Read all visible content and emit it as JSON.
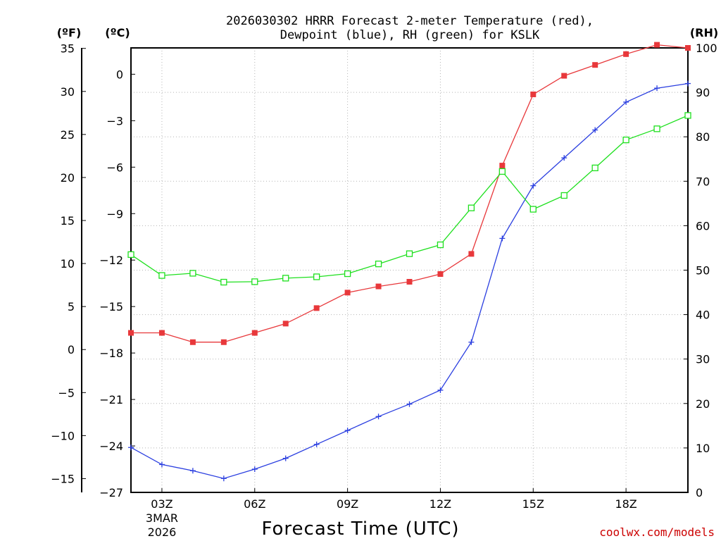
{
  "chart_data": {
    "type": "line",
    "title_line1": "2026030302 HRRR Forecast 2-meter Temperature (red),",
    "title_line2": "Dewpoint (blue), RH (green) for KSLK",
    "xlabel": "Forecast Time (UTC)",
    "credit": "coolwx.com/models",
    "unit_f": "(ºF)",
    "unit_c": "(ºC)",
    "unit_rh": "(RH)",
    "x": [
      2,
      3,
      4,
      5,
      6,
      7,
      8,
      9,
      10,
      11,
      12,
      13,
      14,
      15,
      16,
      17,
      18,
      19,
      20
    ],
    "xlim": [
      2,
      20
    ],
    "x_ticks": [
      {
        "hour": 3,
        "label": "03Z",
        "sub1": "3MAR",
        "sub2": "2026"
      },
      {
        "hour": 6,
        "label": "06Z",
        "sub1": "",
        "sub2": ""
      },
      {
        "hour": 9,
        "label": "09Z",
        "sub1": "",
        "sub2": ""
      },
      {
        "hour": 12,
        "label": "12Z",
        "sub1": "",
        "sub2": ""
      },
      {
        "hour": 15,
        "label": "15Z",
        "sub1": "",
        "sub2": ""
      },
      {
        "hour": 18,
        "label": "18Z",
        "sub1": "",
        "sub2": ""
      }
    ],
    "c_axis": {
      "ylim": [
        -27,
        1.7
      ],
      "ticks": [
        0,
        -3,
        -6,
        -9,
        -12,
        -15,
        -18,
        -21,
        -24,
        -27
      ]
    },
    "f_axis": {
      "ticks": [
        35,
        30,
        25,
        20,
        15,
        10,
        5,
        0,
        -5,
        -10,
        -15
      ]
    },
    "rh_axis": {
      "ylim": [
        0,
        100
      ],
      "ticks": [
        100,
        90,
        80,
        70,
        60,
        50,
        40,
        30,
        20,
        10,
        0
      ]
    },
    "grid": true,
    "series": [
      {
        "name": "Temperature",
        "axis": "c",
        "color": "#e8383b",
        "marker": "filled-square",
        "values": [
          -16.7,
          -16.7,
          -17.3,
          -17.3,
          -16.7,
          -16.1,
          -15.1,
          -14.1,
          -13.7,
          -13.4,
          -12.9,
          -11.6,
          -5.9,
          -1.3,
          -0.1,
          0.6,
          1.3,
          1.9,
          1.7
        ]
      },
      {
        "name": "Dewpoint",
        "axis": "c",
        "color": "#2b3fe0",
        "marker": "plus",
        "values": [
          -24.1,
          -25.2,
          -25.6,
          -26.1,
          -25.5,
          -24.8,
          -23.9,
          -23.0,
          -22.1,
          -21.3,
          -20.4,
          -17.3,
          -10.6,
          -7.2,
          -5.4,
          -3.6,
          -1.8,
          -0.9,
          -0.6
        ]
      },
      {
        "name": "RH",
        "axis": "rh",
        "color": "#1ee01e",
        "marker": "open-square",
        "values": [
          53.5,
          48.8,
          49.3,
          47.3,
          47.4,
          48.2,
          48.5,
          49.2,
          51.4,
          53.7,
          55.7,
          64.0,
          72.2,
          63.7,
          66.8,
          73.0,
          79.3,
          81.8,
          84.8
        ]
      }
    ]
  }
}
